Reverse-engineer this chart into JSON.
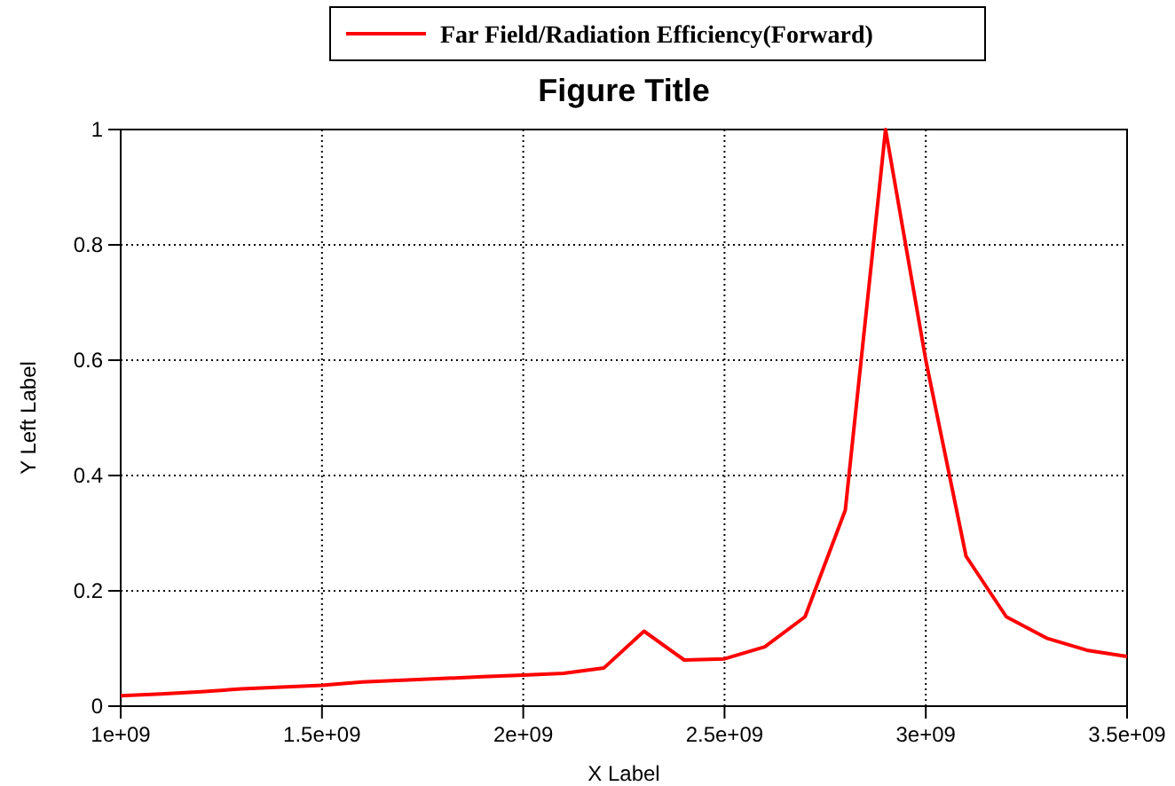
{
  "chart_data": {
    "type": "line",
    "title": "Figure Title",
    "xlabel": "X Label",
    "ylabel": "Y Left Label",
    "x": [
      1000000000.0,
      1100000000.0,
      1200000000.0,
      1300000000.0,
      1400000000.0,
      1500000000.0,
      1600000000.0,
      1700000000.0,
      1800000000.0,
      1900000000.0,
      2000000000.0,
      2100000000.0,
      2200000000.0,
      2300000000.0,
      2400000000.0,
      2500000000.0,
      2600000000.0,
      2700000000.0,
      2800000000.0,
      2900000000.0,
      3000000000.0,
      3100000000.0,
      3200000000.0,
      3300000000.0,
      3400000000.0,
      3500000000.0
    ],
    "series": [
      {
        "name": "Far Field/Radiation Efficiency(Forward)",
        "color": "#ff0000",
        "values": [
          0.018,
          0.021,
          0.025,
          0.03,
          0.033,
          0.036,
          0.042,
          0.045,
          0.048,
          0.051,
          0.054,
          0.057,
          0.066,
          0.13,
          0.08,
          0.082,
          0.103,
          0.155,
          0.34,
          1.0,
          0.6,
          0.26,
          0.155,
          0.118,
          0.097,
          0.086
        ]
      }
    ],
    "xlim": [
      1000000000.0,
      3500000000.0
    ],
    "ylim": [
      0,
      1
    ],
    "xticks": [
      {
        "value": 1000000000.0,
        "label": "1e+09"
      },
      {
        "value": 1500000000.0,
        "label": "1.5e+09"
      },
      {
        "value": 2000000000.0,
        "label": "2e+09"
      },
      {
        "value": 2500000000.0,
        "label": "2.5e+09"
      },
      {
        "value": 3000000000.0,
        "label": "3e+09"
      },
      {
        "value": 3500000000.0,
        "label": "3.5e+09"
      }
    ],
    "yticks": [
      0,
      0.2,
      0.4,
      0.6,
      0.8,
      1
    ],
    "grid": true,
    "legend": "top",
    "marker": "none",
    "line_style": "solid"
  }
}
